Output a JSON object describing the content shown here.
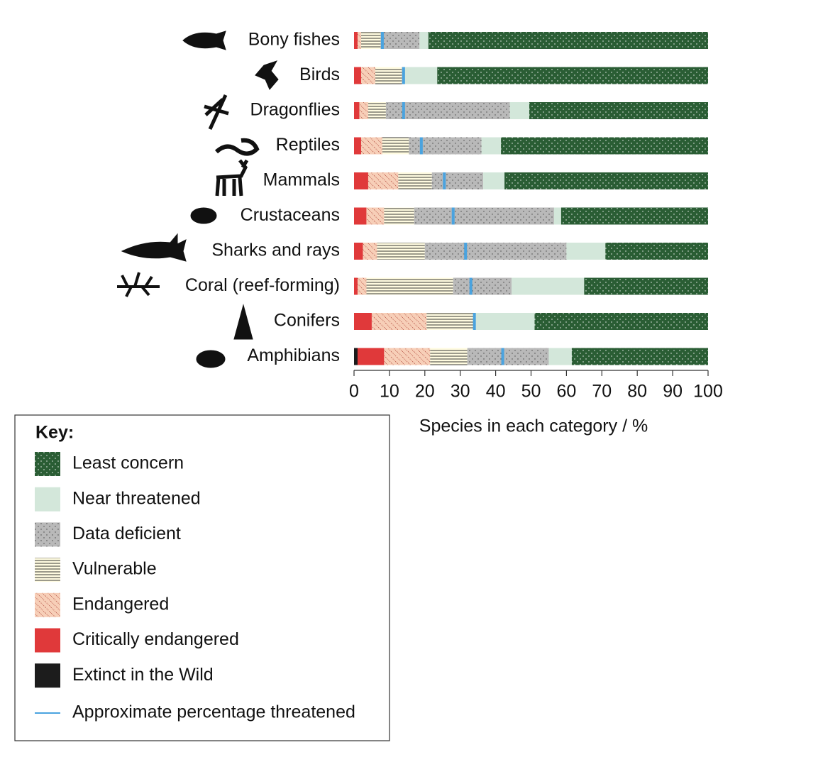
{
  "chart_data": {
    "type": "bar",
    "orientation": "horizontal",
    "stacked": true,
    "categories": [
      "Bony fishes",
      "Birds",
      "Dragonflies",
      "Reptiles",
      "Mammals",
      "Crustaceans",
      "Sharks and rays",
      "Coral (reef-forming)",
      "Conifers",
      "Amphibians"
    ],
    "series": [
      {
        "name": "Extinct in the Wild",
        "color": "#1c1c1c",
        "pattern": "none",
        "values": [
          0,
          0,
          0,
          0,
          0,
          0,
          0,
          0,
          0,
          1
        ]
      },
      {
        "name": "Critically endangered",
        "color": "#e0393a",
        "pattern": "none",
        "values": [
          1,
          2,
          1.5,
          2,
          4,
          3.5,
          2.5,
          1,
          5,
          7.5
        ]
      },
      {
        "name": "Endangered",
        "color": "#f7cfb8",
        "pattern": "diagonal",
        "values": [
          1,
          4,
          2.5,
          6,
          8.5,
          5,
          4,
          2.5,
          15.5,
          13
        ]
      },
      {
        "name": "Vulnerable",
        "color": "#fffbe0",
        "pattern": "hlines",
        "values": [
          5.5,
          7.5,
          5,
          7.5,
          9.5,
          8.5,
          13.5,
          24.5,
          13.5,
          10.5
        ]
      },
      {
        "name": "Data deficient",
        "color": "#b9b9b9",
        "pattern": "dots-dark",
        "values": [
          11,
          0.5,
          35,
          20.5,
          14.5,
          39.5,
          40,
          16.5,
          0,
          23
        ]
      },
      {
        "name": "Near threatened",
        "color": "#d3e7da",
        "pattern": "none",
        "values": [
          2.5,
          9.5,
          5.5,
          5.5,
          6,
          2,
          11,
          20.5,
          17,
          6.5
        ]
      },
      {
        "name": "Least concern",
        "color": "#2a5d34",
        "pattern": "dots-light",
        "values": [
          79,
          76.5,
          50.5,
          58.5,
          57.5,
          41.5,
          29,
          35,
          49,
          38.5
        ]
      }
    ],
    "reference_line": {
      "name": "Approximate percentage threatened",
      "color": "#4aa3df",
      "values": [
        8,
        14,
        14,
        19,
        25.5,
        28,
        31.5,
        33,
        34,
        42
      ]
    },
    "xlabel": "Species in each category / %",
    "xlim": [
      0,
      100
    ],
    "xticks": [
      0,
      10,
      20,
      30,
      40,
      50,
      60,
      70,
      80,
      90,
      100
    ],
    "grid": false,
    "legend_title": "Key:",
    "legend_position": "bottom-left"
  }
}
